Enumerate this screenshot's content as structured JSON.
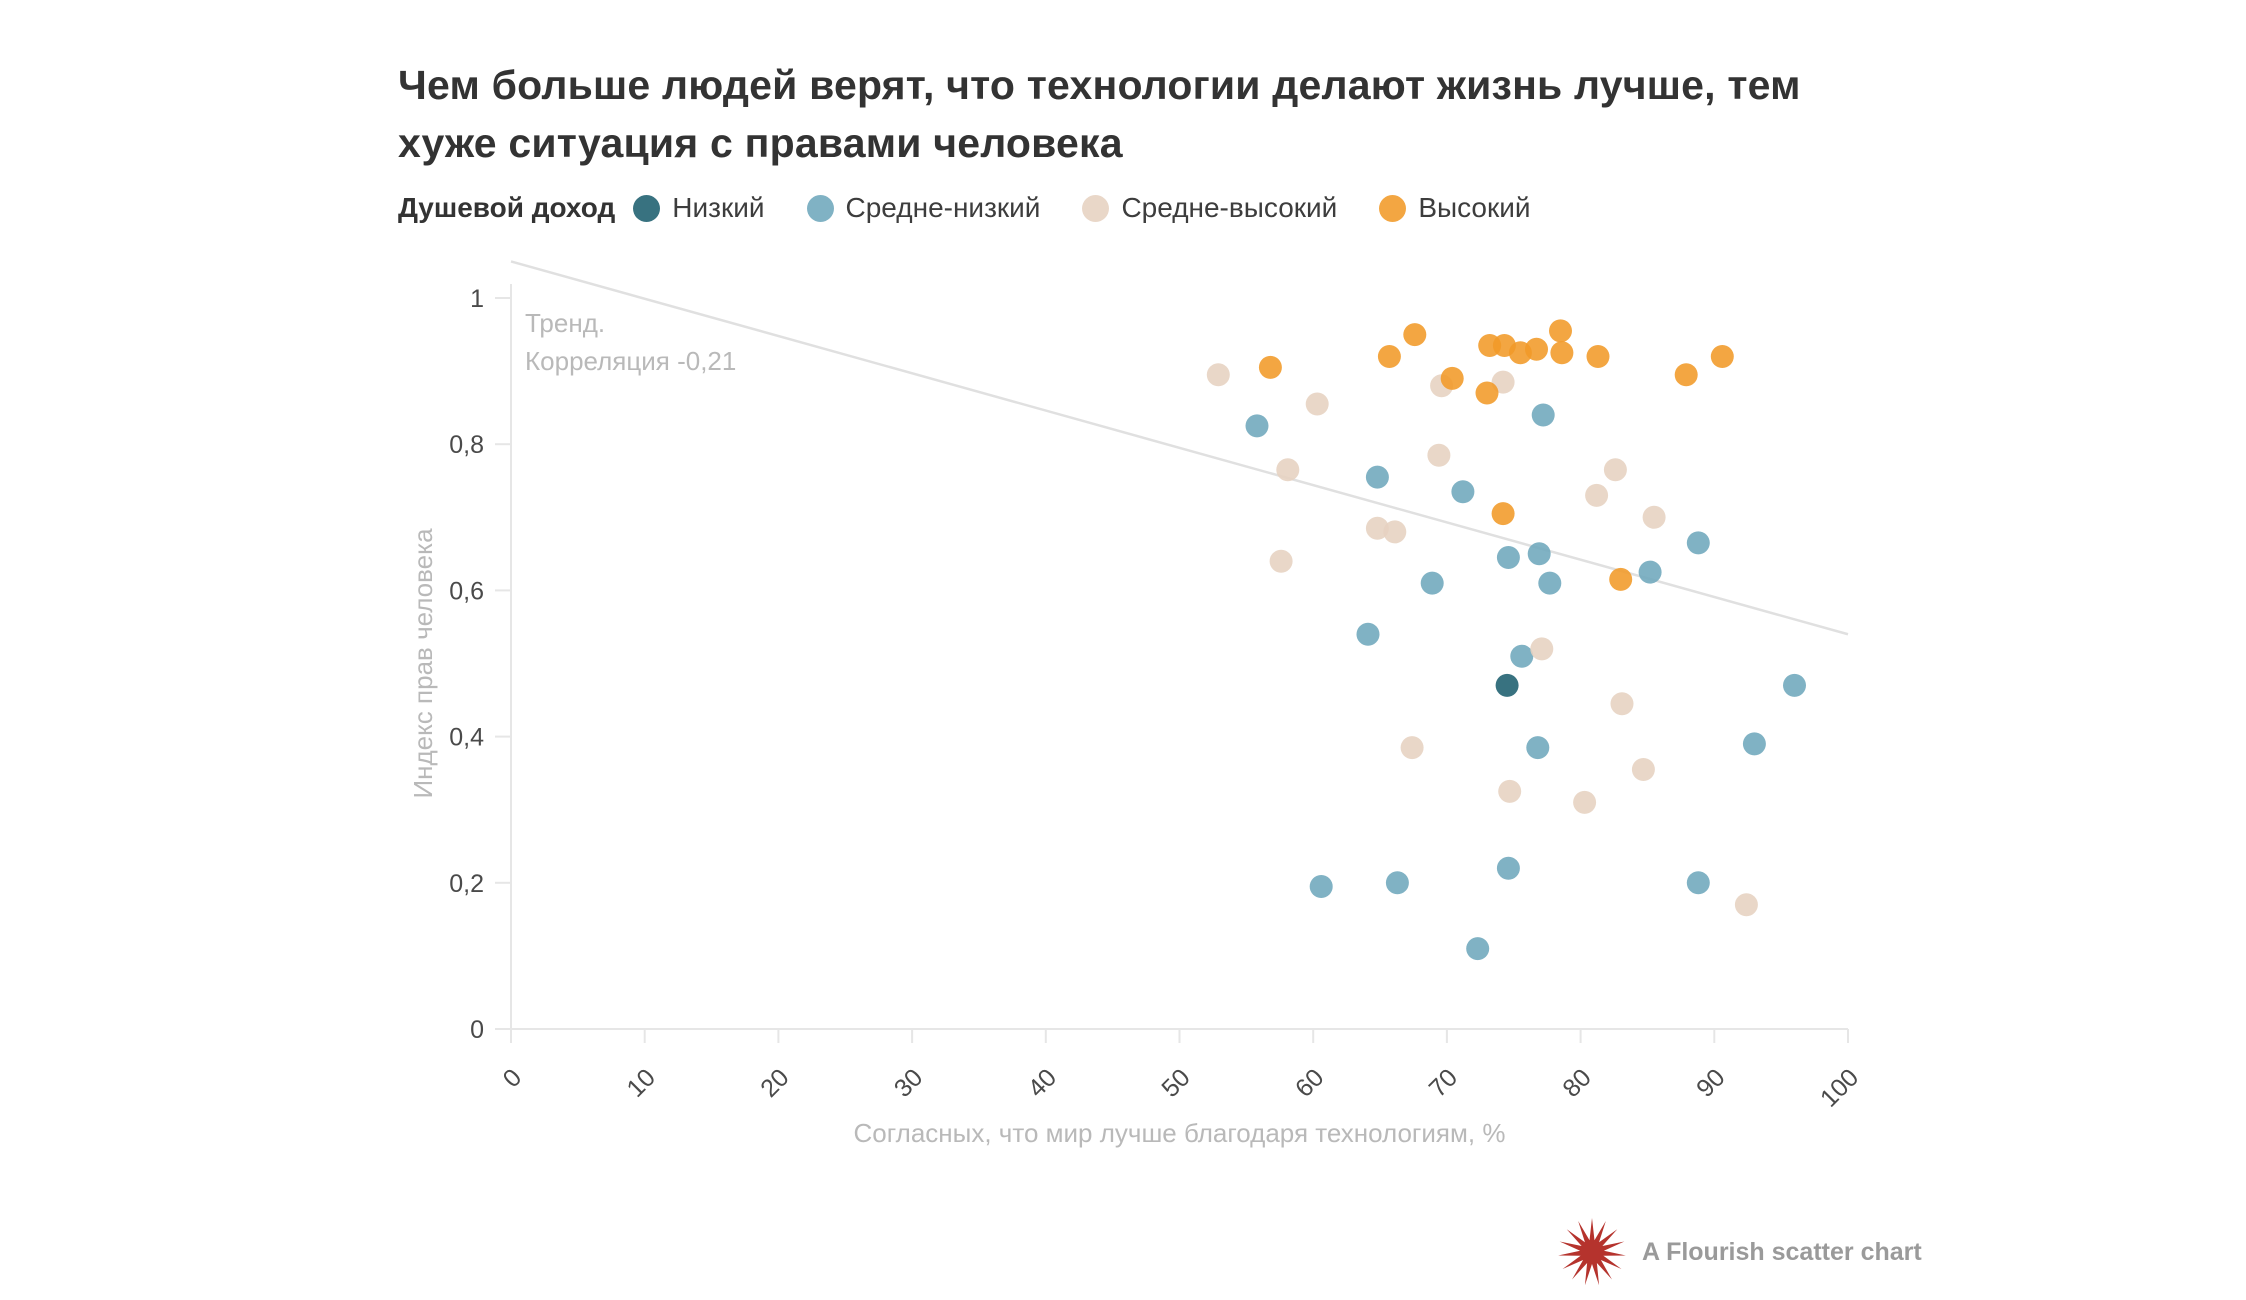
{
  "header": {
    "title": "Чем больше людей верят, что технологии делают жизнь лучше, тем хуже ситуация с правами человека"
  },
  "legend": {
    "title": "Душевой доход",
    "items": [
      {
        "label": "Низкий",
        "color": "#1d5f6e"
      },
      {
        "label": "Средне-низкий",
        "color": "#6ea7bc"
      },
      {
        "label": "Средне-высокий",
        "color": "#e6d2c0"
      },
      {
        "label": "Высокий",
        "color": "#f19a28"
      }
    ]
  },
  "chart_data": {
    "type": "scatter",
    "title": "Чем больше людей верят, что технологии делают жизнь лучше, тем хуже ситуация с правами человека",
    "xlabel": "Согласных, что мир лучше благодаря технологиям, %",
    "ylabel": "Индекс прав человека",
    "xlim": [
      0,
      100
    ],
    "ylim": [
      0,
      1
    ],
    "grid": false,
    "legend_position": "top",
    "x_ticks": {
      "values": [
        0,
        10,
        20,
        30,
        40,
        50,
        60,
        70,
        80,
        90,
        100
      ],
      "labels": [
        "0",
        "10",
        "20",
        "30",
        "40",
        "50",
        "60",
        "70",
        "80",
        "90",
        "100"
      ]
    },
    "y_ticks": {
      "values": [
        0,
        0.2,
        0.4,
        0.6,
        0.8,
        1
      ],
      "labels": [
        "0",
        "0,2",
        "0,4",
        "0,6",
        "0,8",
        "1"
      ]
    },
    "trend": {
      "annotation_line1": "Тренд.",
      "annotation_line2": "Корреляция -0,21",
      "correlation": -0.21,
      "x": [
        0,
        100
      ],
      "y": [
        1.05,
        0.54
      ],
      "color": "#e0e0e0"
    },
    "series": [
      {
        "name": "Низкий",
        "color": "#1d5f6e",
        "points": [
          [
            74.5,
            0.47
          ]
        ]
      },
      {
        "name": "Средне-низкий",
        "color": "#6ea7bc",
        "points": [
          [
            55.8,
            0.825
          ],
          [
            60.6,
            0.195
          ],
          [
            64.1,
            0.54
          ],
          [
            64.8,
            0.755
          ],
          [
            66.3,
            0.2
          ],
          [
            68.9,
            0.61
          ],
          [
            71.2,
            0.735
          ],
          [
            72.3,
            0.11
          ],
          [
            74.6,
            0.645
          ],
          [
            74.6,
            0.22
          ],
          [
            75.6,
            0.51
          ],
          [
            76.8,
            0.385
          ],
          [
            76.9,
            0.65
          ],
          [
            77.2,
            0.84
          ],
          [
            77.7,
            0.61
          ],
          [
            85.2,
            0.625
          ],
          [
            88.8,
            0.665
          ],
          [
            88.8,
            0.2
          ],
          [
            93.0,
            0.39
          ],
          [
            96.0,
            0.47
          ]
        ]
      },
      {
        "name": "Средне-высокий",
        "color": "#e6d2c0",
        "points": [
          [
            52.9,
            0.895
          ],
          [
            57.6,
            0.64
          ],
          [
            58.1,
            0.765
          ],
          [
            60.3,
            0.855
          ],
          [
            64.8,
            0.685
          ],
          [
            66.1,
            0.68
          ],
          [
            67.4,
            0.385
          ],
          [
            69.4,
            0.785
          ],
          [
            69.6,
            0.88
          ],
          [
            74.2,
            0.885
          ],
          [
            74.7,
            0.325
          ],
          [
            77.1,
            0.52
          ],
          [
            80.3,
            0.31
          ],
          [
            81.2,
            0.73
          ],
          [
            82.6,
            0.765
          ],
          [
            83.1,
            0.445
          ],
          [
            84.7,
            0.355
          ],
          [
            85.5,
            0.7
          ],
          [
            92.4,
            0.17
          ]
        ]
      },
      {
        "name": "Высокий",
        "color": "#f19a28",
        "points": [
          [
            56.8,
            0.905
          ],
          [
            65.7,
            0.92
          ],
          [
            67.6,
            0.95
          ],
          [
            70.4,
            0.89
          ],
          [
            73.0,
            0.87
          ],
          [
            73.2,
            0.935
          ],
          [
            74.2,
            0.705
          ],
          [
            74.3,
            0.935
          ],
          [
            75.5,
            0.925
          ],
          [
            76.7,
            0.93
          ],
          [
            78.5,
            0.955
          ],
          [
            78.6,
            0.925
          ],
          [
            81.3,
            0.92
          ],
          [
            83.0,
            0.615
          ],
          [
            87.9,
            0.895
          ],
          [
            90.6,
            0.92
          ]
        ]
      }
    ],
    "point_radius": 11.5,
    "axis_color": "#e6e6e6",
    "tick_text_color": "#4a4a4a",
    "muted_text_color": "#b9b9b9"
  },
  "footer": {
    "logo": "flourish-logo",
    "logo_color": "#b5332d",
    "text": "A Flourish scatter chart"
  }
}
